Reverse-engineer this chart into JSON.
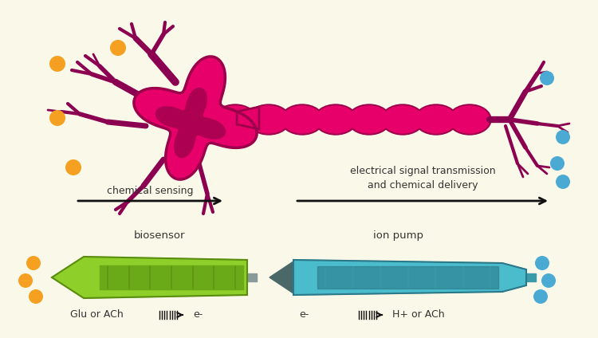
{
  "bg_color": "#faf8e8",
  "soma_fill": "#e8006a",
  "soma_dark": "#9b004a",
  "axon_color": "#e8006a",
  "axon_dark": "#9b004a",
  "dendrite_color": "#8b0050",
  "orange_color": "#f5a020",
  "blue_color": "#4aaad4",
  "arrow_color": "#111111",
  "text_color": "#333333",
  "green_light": "#8ecf2a",
  "green_dark": "#5a8c10",
  "green_stripe": "#6aaa18",
  "teal_light": "#4abccc",
  "teal_mid": "#3a9aaa",
  "teal_dark": "#2a7888",
  "gray_tri": "#4a6868",
  "label_chemical": "chemical sensing",
  "label_electrical": "electrical signal transmission\nand chemical delivery",
  "label_biosensor": "biosensor",
  "label_ion_pump": "ion pump",
  "label_glu": "Glu or ACh",
  "label_eminus1": "e-",
  "label_eminus2": "e-",
  "label_hplus": "H+ or ACh"
}
